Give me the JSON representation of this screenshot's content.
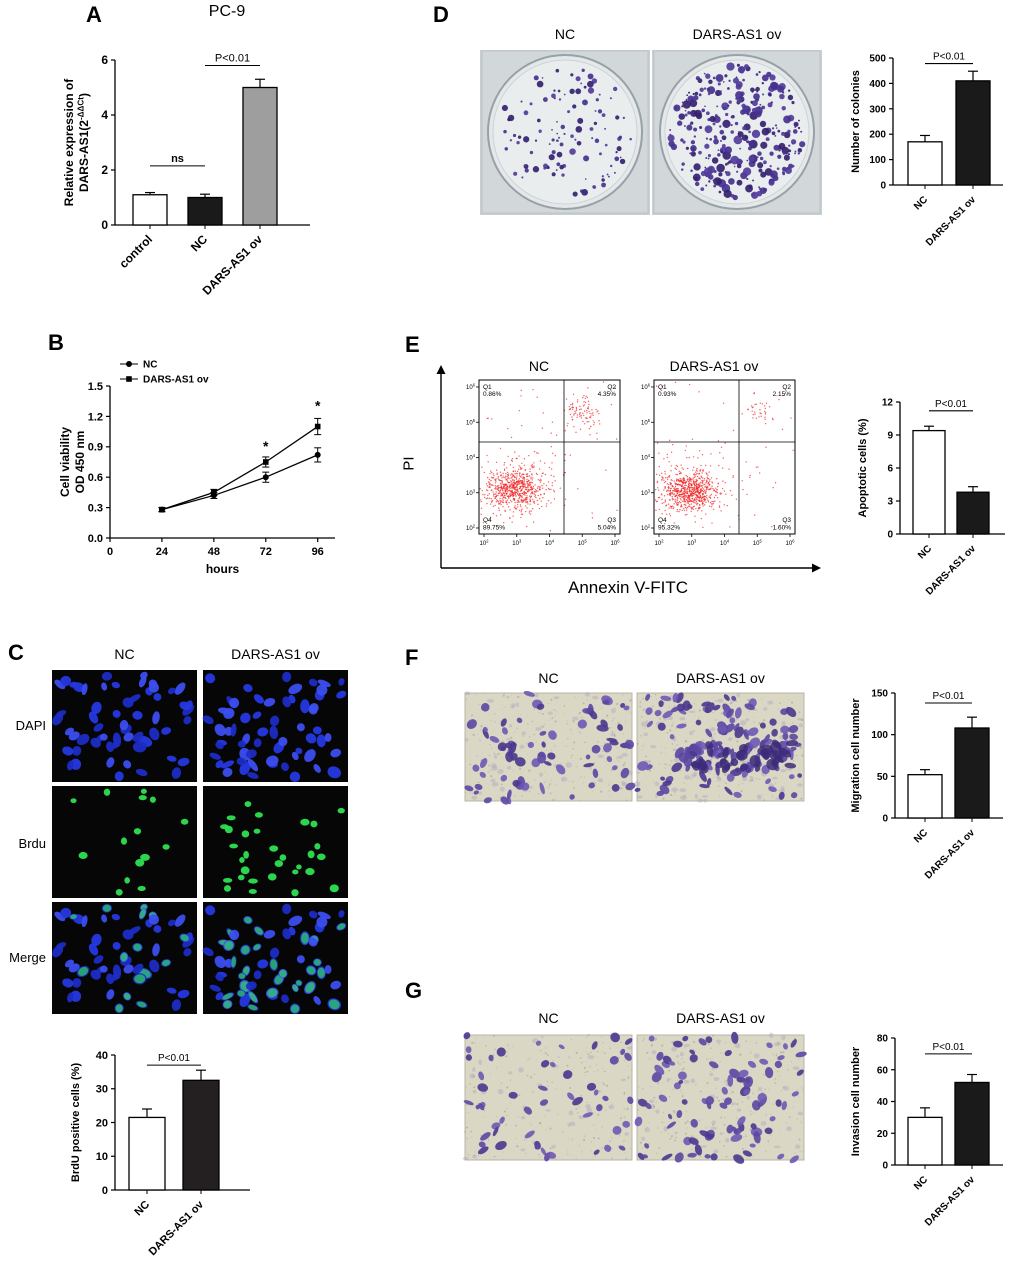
{
  "figure": {
    "panels": {
      "A": {
        "label": "A"
      },
      "B": {
        "label": "B"
      },
      "C": {
        "label": "C",
        "col_headers": [
          "NC",
          "DARS-AS1 ov"
        ],
        "row_labels": [
          "DAPI",
          "Brdu",
          "Merge"
        ]
      },
      "D": {
        "label": "D",
        "image_labels": [
          "NC",
          "DARS-AS1 ov"
        ]
      },
      "E": {
        "label": "E",
        "plot_titles": [
          "NC",
          "DARS-AS1 ov"
        ],
        "xlabel": "Annexin V-FITC",
        "ylabel": "PI"
      },
      "F": {
        "label": "F",
        "image_labels": [
          "NC",
          "DARS-AS1 ov"
        ]
      },
      "G": {
        "label": "G",
        "image_labels": [
          "NC",
          "DARS-AS1 ov"
        ]
      }
    }
  },
  "image_colors": {
    "dapi_blue": "#2336dd",
    "brdu_green": "#2ee052",
    "crystal_violet": "#46318f",
    "flow_points": "#f02424"
  },
  "chart_data": [
    {
      "id": "A",
      "type": "bar",
      "title": "PC-9",
      "ylabel_lines": [
        "Relative expression of",
        "DARS-AS1(2^-ΔΔCt^)"
      ],
      "categories": [
        "control",
        "NC",
        "DARS-AS1 ov"
      ],
      "values": [
        1.1,
        1.0,
        5.0
      ],
      "errors": [
        0.08,
        0.12,
        0.3
      ],
      "colors": [
        "#ffffff",
        "#1a1a1a",
        "#9e9e9e"
      ],
      "ylim": [
        0,
        6
      ],
      "yticks": [
        "0",
        "2",
        "4",
        "6"
      ],
      "annotations": [
        {
          "text": "ns",
          "x1": 0,
          "x2": 1,
          "y": 2.15
        },
        {
          "text": "P<0.01",
          "x1": 1,
          "x2": 2,
          "y": 5.8
        }
      ]
    },
    {
      "id": "B",
      "type": "line",
      "ylabel_lines": [
        "Cell viability",
        "OD 450 nm"
      ],
      "xlabel": "hours",
      "x": [
        24,
        48,
        72,
        96
      ],
      "xticks": [
        "0",
        "24",
        "48",
        "72",
        "96"
      ],
      "ylim": [
        0,
        1.5
      ],
      "yticks": [
        "0.0",
        "0.3",
        "0.6",
        "0.9",
        "1.2",
        "1.5"
      ],
      "series": [
        {
          "name": "NC",
          "marker": "circle",
          "values": [
            0.28,
            0.42,
            0.6,
            0.82
          ],
          "errors": [
            0.02,
            0.03,
            0.05,
            0.07
          ]
        },
        {
          "name": "DARS-AS1 ov",
          "marker": "square",
          "values": [
            0.28,
            0.45,
            0.75,
            1.1
          ],
          "errors": [
            0.02,
            0.03,
            0.05,
            0.08
          ]
        }
      ],
      "annotations": [
        {
          "text": "*",
          "x": 72,
          "y": 0.86
        },
        {
          "text": "*",
          "x": 96,
          "y": 1.26
        }
      ]
    },
    {
      "id": "C_bar",
      "type": "bar",
      "ylabel_lines": [
        "BrdU positive cells (%)"
      ],
      "categories": [
        "NC",
        "DARS-AS1 ov"
      ],
      "values": [
        21.5,
        32.5
      ],
      "errors": [
        2.5,
        3
      ],
      "colors": [
        "#ffffff",
        "#242021"
      ],
      "ylim": [
        0,
        40
      ],
      "yticks": [
        "0",
        "10",
        "20",
        "30",
        "40"
      ],
      "annotations": [
        {
          "text": "P<0.01",
          "x1": 0,
          "x2": 1,
          "y": 37
        }
      ]
    },
    {
      "id": "D_bar",
      "type": "bar",
      "ylabel_lines": [
        "Number of colonies"
      ],
      "categories": [
        "NC",
        "DARS-AS1 ov"
      ],
      "values": [
        170,
        410
      ],
      "errors": [
        25,
        38
      ],
      "colors": [
        "#ffffff",
        "#1a1a1a"
      ],
      "ylim": [
        0,
        500
      ],
      "yticks": [
        "0",
        "100",
        "200",
        "300",
        "400",
        "500"
      ],
      "annotations": [
        {
          "text": "P<0.01",
          "x1": 0,
          "x2": 1,
          "y": 478
        }
      ]
    },
    {
      "id": "E_bar",
      "type": "bar",
      "ylabel_lines": [
        "Apoptotic cells (%)"
      ],
      "categories": [
        "NC",
        "DARS-AS1 ov"
      ],
      "values": [
        9.4,
        3.8
      ],
      "errors": [
        0.4,
        0.5
      ],
      "colors": [
        "#ffffff",
        "#1a1a1a"
      ],
      "ylim": [
        0,
        12
      ],
      "yticks": [
        "0",
        "3",
        "6",
        "9",
        "12"
      ],
      "annotations": [
        {
          "text": "P<0.01",
          "x1": 0,
          "x2": 1,
          "y": 11.2
        }
      ]
    },
    {
      "id": "F_bar",
      "type": "bar",
      "ylabel_lines": [
        "Migration cell number"
      ],
      "categories": [
        "NC",
        "DARS-AS1 ov"
      ],
      "values": [
        52,
        108
      ],
      "errors": [
        6,
        13
      ],
      "colors": [
        "#ffffff",
        "#1a1a1a"
      ],
      "ylim": [
        0,
        150
      ],
      "yticks": [
        "0",
        "50",
        "100",
        "150"
      ],
      "annotations": [
        {
          "text": "P<0.01",
          "x1": 0,
          "x2": 1,
          "y": 138
        }
      ]
    },
    {
      "id": "G_bar",
      "type": "bar",
      "ylabel_lines": [
        "Invasion cell number"
      ],
      "categories": [
        "NC",
        "DARS-AS1 ov"
      ],
      "values": [
        30,
        52
      ],
      "errors": [
        6,
        5
      ],
      "colors": [
        "#ffffff",
        "#1a1a1a"
      ],
      "ylim": [
        0,
        80
      ],
      "yticks": [
        "0",
        "20",
        "40",
        "60",
        "80"
      ],
      "annotations": [
        {
          "text": "P<0.01",
          "x1": 0,
          "x2": 1,
          "y": 70
        }
      ]
    },
    {
      "id": "E_flow_NC",
      "type": "scatter",
      "title": "NC",
      "xlabel": "Annexin V-FITC",
      "ylabel": "PI",
      "xticks": [
        "10^2^",
        "10^3^",
        "10^4^",
        "10^5^",
        "10^6^"
      ],
      "yticks": [
        "10^2^",
        "10^3^",
        "10^4^",
        "10^5^",
        "10^6^"
      ],
      "quadrants": [
        {
          "name": "Q1",
          "value": "0.86%"
        },
        {
          "name": "Q2",
          "value": "4.35%"
        },
        {
          "name": "Q3",
          "value": "5.04%"
        },
        {
          "name": "Q4",
          "value": "89.75%"
        }
      ]
    },
    {
      "id": "E_flow_OV",
      "type": "scatter",
      "title": "DARS-AS1 ov",
      "xlabel": "Annexin V-FITC",
      "ylabel": "PI",
      "xticks": [
        "10^2^",
        "10^3^",
        "10^4^",
        "10^5^",
        "10^6^"
      ],
      "yticks": [
        "10^2^",
        "10^3^",
        "10^4^",
        "10^5^",
        "10^6^"
      ],
      "quadrants": [
        {
          "name": "Q1",
          "value": "0.93%"
        },
        {
          "name": "Q2",
          "value": "2.15%"
        },
        {
          "name": "Q3",
          "value": "1.60%"
        },
        {
          "name": "Q4",
          "value": "95.32%"
        }
      ]
    }
  ]
}
